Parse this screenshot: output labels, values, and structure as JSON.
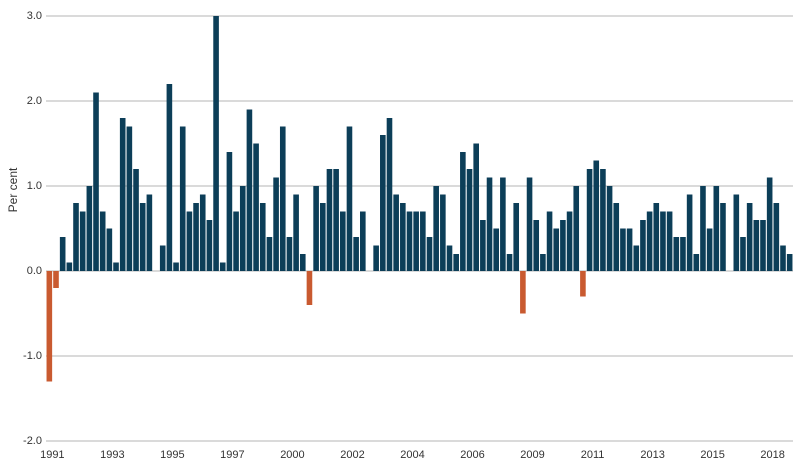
{
  "chart_data": {
    "type": "bar",
    "y_label": "Per cent",
    "color": "#0c3e58",
    "negative_color": "#c95a30",
    "ylim": [
      -2,
      3
    ],
    "yticks": [
      {
        "value": -2,
        "label": "-2.0"
      },
      {
        "value": -1,
        "label": "-1.0"
      },
      {
        "value": 0,
        "label": "0.0"
      },
      {
        "value": 1,
        "label": "1.0"
      },
      {
        "value": 2,
        "label": "2.0"
      },
      {
        "value": 3,
        "label": "3.0"
      }
    ],
    "grid": true,
    "categories": [
      "1991",
      null,
      null,
      null,
      null,
      null,
      null,
      null,
      null,
      "1993",
      null,
      null,
      null,
      null,
      null,
      null,
      null,
      null,
      "1995",
      null,
      null,
      null,
      null,
      null,
      null,
      null,
      null,
      "1997",
      null,
      null,
      null,
      null,
      null,
      null,
      null,
      null,
      "2000",
      null,
      null,
      null,
      null,
      null,
      null,
      null,
      null,
      "2002",
      null,
      null,
      null,
      null,
      null,
      null,
      null,
      null,
      "2004",
      null,
      null,
      null,
      null,
      null,
      null,
      null,
      null,
      "2006",
      null,
      null,
      null,
      null,
      null,
      null,
      null,
      null,
      "2009",
      null,
      null,
      null,
      null,
      null,
      null,
      null,
      null,
      "2011",
      null,
      null,
      null,
      null,
      null,
      null,
      null,
      null,
      "2013",
      null,
      null,
      null,
      null,
      null,
      null,
      null,
      null,
      "2015",
      null,
      null,
      null,
      null,
      null,
      null,
      null,
      null,
      "2018",
      null,
      null,
      null
    ],
    "values": [
      -1.3,
      -0.2,
      0.4,
      0.1,
      0.8,
      0.7,
      1.0,
      2.1,
      0.7,
      0.5,
      0.1,
      1.8,
      1.7,
      1.2,
      0.8,
      0.9,
      0,
      0.3,
      2.2,
      0.1,
      1.7,
      0.7,
      0.8,
      0.9,
      0.6,
      3.0,
      0.1,
      1.4,
      0.7,
      1.0,
      1.9,
      1.5,
      0.8,
      0.4,
      1.1,
      1.7,
      0.4,
      0.9,
      0.2,
      -0.4,
      1.0,
      0.8,
      1.2,
      1.2,
      0.7,
      1.7,
      0.4,
      0.7,
      0,
      0.3,
      1.6,
      1.8,
      0.9,
      0.8,
      0.7,
      0.7,
      0.7,
      0.4,
      1.0,
      0.9,
      0.3,
      0.2,
      1.4,
      1.2,
      1.5,
      0.6,
      1.1,
      0.5,
      1.1,
      0.2,
      0.8,
      -0.5,
      1.1,
      0.6,
      0.2,
      0.7,
      0.5,
      0.6,
      0.7,
      1.0,
      -0.3,
      1.2,
      1.3,
      1.2,
      1.0,
      0.8,
      0.5,
      0.5,
      0.3,
      0.6,
      0.7,
      0.8,
      0.7,
      0.7,
      0.4,
      0.4,
      0.9,
      0.2,
      1.0,
      0.5,
      1.0,
      0.8,
      0,
      0.9,
      0.4,
      0.8,
      0.6,
      0.6,
      1.1,
      0.8,
      0.3,
      0.2
    ]
  }
}
